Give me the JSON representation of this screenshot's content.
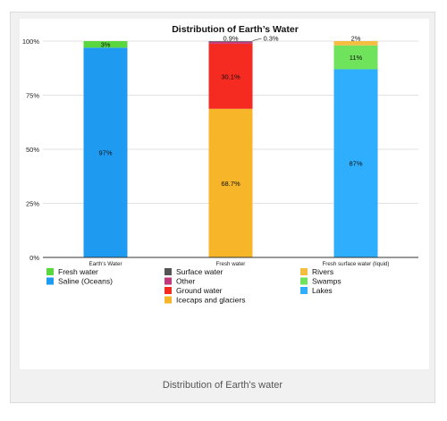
{
  "caption": "Distribution of Earth's water",
  "chart_data": {
    "type": "bar",
    "stacked": true,
    "title": "Distribution of Earth’s Water",
    "categories": [
      "Earth's Water",
      "Fresh water",
      "Fresh surface water (liquid)"
    ],
    "ylim": [
      0,
      100
    ],
    "yticks": [
      "0%",
      "25%",
      "50%",
      "75%",
      "100%"
    ],
    "grid": true,
    "legend_position": "bottom",
    "series": [
      {
        "name": "Fresh water",
        "color": "#5ad63f",
        "values": [
          3,
          0,
          0
        ],
        "labels": [
          "3%",
          "",
          ""
        ]
      },
      {
        "name": "Saline (Oceans)",
        "color": "#1e9bf0",
        "values": [
          97,
          0,
          0
        ],
        "labels": [
          "97%",
          "",
          ""
        ]
      },
      {
        "name": "Surface water",
        "color": "#555555",
        "values": [
          0,
          0.3,
          0
        ],
        "labels": [
          "",
          "0.3%",
          ""
        ]
      },
      {
        "name": "Other",
        "color": "#c1397a",
        "values": [
          0,
          0.9,
          0
        ],
        "labels": [
          "",
          "0.9%",
          ""
        ]
      },
      {
        "name": "Ground water",
        "color": "#f52a20",
        "values": [
          0,
          30.1,
          0
        ],
        "labels": [
          "",
          "30.1%",
          ""
        ]
      },
      {
        "name": "Icecaps and glaciers",
        "color": "#f7b62a",
        "values": [
          0,
          68.7,
          0
        ],
        "labels": [
          "",
          "68.7%",
          ""
        ]
      },
      {
        "name": "Rivers",
        "color": "#f4bd3f",
        "values": [
          0,
          0,
          2
        ],
        "labels": [
          "",
          "",
          "2%"
        ]
      },
      {
        "name": "Swamps",
        "color": "#6fe35b",
        "values": [
          0,
          0,
          11
        ],
        "labels": [
          "",
          "",
          "11%"
        ]
      },
      {
        "name": "Lakes",
        "color": "#2eaefc",
        "values": [
          0,
          0,
          87
        ],
        "labels": [
          "",
          "",
          "87%"
        ]
      }
    ]
  }
}
